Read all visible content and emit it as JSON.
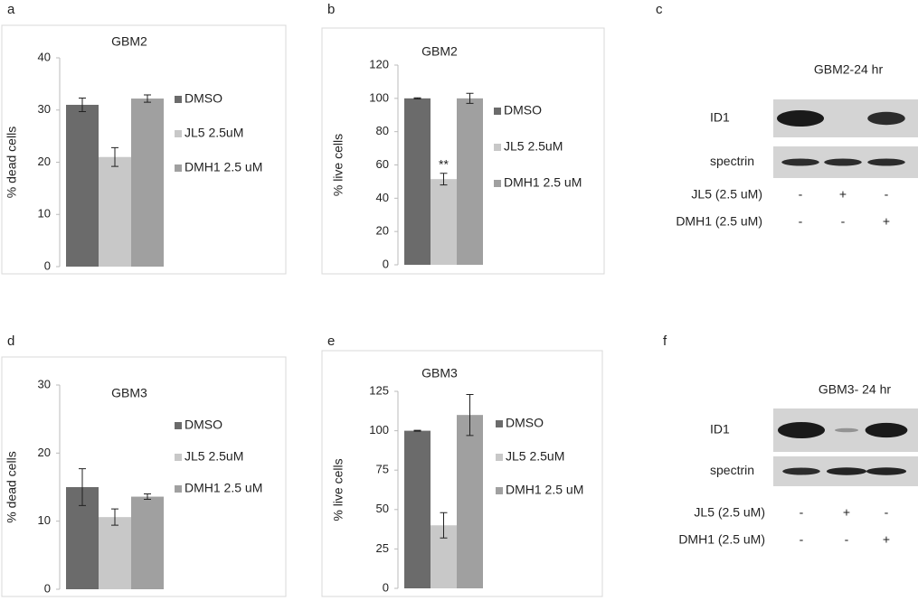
{
  "panel_labels": [
    "a",
    "b",
    "c",
    "d",
    "e",
    "f"
  ],
  "chart_data": [
    {
      "type": "bar",
      "title": "GBM2",
      "ylabel": "% dead cells",
      "ylim": [
        0,
        40
      ],
      "yticks": [
        0,
        10,
        20,
        30,
        40
      ],
      "series": [
        {
          "name": "DMSO",
          "color": "#6b6b6b",
          "values": [
            31
          ],
          "errors": [
            1.3
          ]
        },
        {
          "name": "JL5 2.5uM",
          "color": "#c8c8c8",
          "values": [
            21
          ],
          "errors": [
            1.8
          ]
        },
        {
          "name": "DMH1 2.5 uM",
          "color": "#a0a0a0",
          "values": [
            32.2
          ],
          "errors": [
            0.7
          ]
        }
      ]
    },
    {
      "type": "bar",
      "title": "GBM2",
      "ylabel": "% live cells",
      "ylim": [
        0,
        120
      ],
      "yticks": [
        0,
        20,
        40,
        60,
        80,
        100,
        120
      ],
      "series": [
        {
          "name": "DMSO",
          "color": "#6b6b6b",
          "values": [
            100
          ],
          "errors": [
            0.3
          ]
        },
        {
          "name": "JL5 2.5uM",
          "color": "#c8c8c8",
          "values": [
            51.5
          ],
          "errors": [
            3.5
          ],
          "marker_label": "**"
        },
        {
          "name": "DMH1 2.5 uM",
          "color": "#a0a0a0",
          "values": [
            100
          ],
          "errors": [
            3
          ]
        }
      ]
    },
    {
      "type": "bar",
      "title": "GBM3",
      "ylabel": "% dead cells",
      "ylim": [
        0,
        30
      ],
      "yticks": [
        0,
        10,
        20,
        30
      ],
      "series": [
        {
          "name": "DMSO",
          "color": "#6b6b6b",
          "values": [
            15
          ],
          "errors": [
            2.7
          ]
        },
        {
          "name": "JL5 2.5uM",
          "color": "#c8c8c8",
          "values": [
            10.6
          ],
          "errors": [
            1.2
          ]
        },
        {
          "name": "DMH1 2.5 uM",
          "color": "#a0a0a0",
          "values": [
            13.6
          ],
          "errors": [
            0.4
          ]
        }
      ]
    },
    {
      "type": "bar",
      "title": "GBM3",
      "ylabel": "% live cells",
      "ylim": [
        0,
        125
      ],
      "yticks": [
        0,
        25,
        50,
        75,
        100,
        125
      ],
      "series": [
        {
          "name": "DMSO",
          "color": "#6b6b6b",
          "values": [
            100
          ],
          "errors": [
            0.3
          ]
        },
        {
          "name": "JL5 2.5uM",
          "color": "#c8c8c8",
          "values": [
            40
          ],
          "errors": [
            8
          ]
        },
        {
          "name": "DMH1 2.5 uM",
          "color": "#a0a0a0",
          "values": [
            110
          ],
          "errors": [
            13
          ]
        }
      ]
    }
  ],
  "blots": [
    {
      "title": "GBM2-24 hr",
      "rows": [
        "ID1",
        "spectrin"
      ],
      "conditions": [
        {
          "label": "JL5 (2.5 uM)",
          "marks": [
            "-",
            "+",
            "-"
          ]
        },
        {
          "label": "DMH1 (2.5 uM)",
          "marks": [
            "-",
            "-",
            "+"
          ]
        }
      ]
    },
    {
      "title": "GBM3- 24 hr",
      "rows": [
        "ID1",
        "spectrin"
      ],
      "conditions": [
        {
          "label": "JL5 (2.5 uM)",
          "marks": [
            "-",
            "+",
            "-"
          ]
        },
        {
          "label": "DMH1 (2.5 uM)",
          "marks": [
            "-",
            "-",
            "+"
          ]
        }
      ]
    }
  ]
}
